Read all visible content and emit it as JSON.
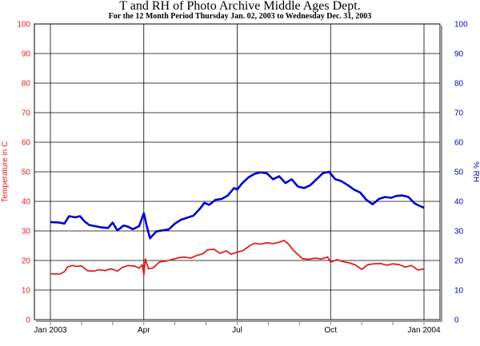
{
  "chart_data": {
    "type": "line",
    "title": "T and RH of Photo Archive Middle Ages Dept.",
    "subtitle": "For the 12 Month Period Thursday Jan. 02, 2003 to Wednesday Dec. 31, 2003",
    "ylabel_left": "Temperature in C",
    "ylabel_right": "% RH",
    "ylim_left": [
      0,
      100
    ],
    "ylim_right": [
      0,
      100
    ],
    "yticks": [
      0,
      10,
      20,
      30,
      40,
      50,
      60,
      70,
      80,
      90,
      100
    ],
    "x_ticks": [
      {
        "label": "Jan 2003",
        "month": 0
      },
      {
        "label": "Apr",
        "month": 3
      },
      {
        "label": "Jul",
        "month": 6
      },
      {
        "label": "Oct",
        "month": 9
      },
      {
        "label": "Jan 2004",
        "month": 12
      }
    ],
    "grid": true,
    "colors": {
      "temperature": "#e02020",
      "rh": "#0000cc"
    },
    "series": [
      {
        "axis": "left",
        "color": "#e02020",
        "x": [
          0,
          0.3,
          0.45,
          0.55,
          0.7,
          0.85,
          1.0,
          1.2,
          1.4,
          1.55,
          1.75,
          1.95,
          2.15,
          2.3,
          2.5,
          2.7,
          2.85,
          2.95,
          3.0,
          3.05,
          3.15,
          3.3,
          3.5,
          3.7,
          3.9,
          4.1,
          4.3,
          4.5,
          4.7,
          4.9,
          5.05,
          5.25,
          5.45,
          5.65,
          5.8,
          6.0,
          6.2,
          6.4,
          6.55,
          6.75,
          6.95,
          7.15,
          7.35,
          7.5,
          7.65,
          7.8,
          7.95,
          8.1,
          8.3,
          8.5,
          8.7,
          8.9,
          9.0,
          9.2,
          9.4,
          9.6,
          9.8,
          10.0,
          10.2,
          10.4,
          10.6,
          10.8,
          11.0,
          11.2,
          11.4,
          11.6,
          11.8,
          12.0
        ],
        "values": [
          15.5,
          15.4,
          16.2,
          17.8,
          18.3,
          18.0,
          18.2,
          16.5,
          16.4,
          16.9,
          16.6,
          17.2,
          16.4,
          17.6,
          18.3,
          18.1,
          17.4,
          18.6,
          15.2,
          20.5,
          17.2,
          17.5,
          19.5,
          19.8,
          20.3,
          20.9,
          21.2,
          20.8,
          21.7,
          22.3,
          23.6,
          23.8,
          22.4,
          23.3,
          22.1,
          22.8,
          23.4,
          25.0,
          25.8,
          25.5,
          26.0,
          25.7,
          26.2,
          26.8,
          25.5,
          23.5,
          22.0,
          20.6,
          20.4,
          20.8,
          20.5,
          21.2,
          19.4,
          20.3,
          19.6,
          19.2,
          18.5,
          17.0,
          18.6,
          18.9,
          19.0,
          18.4,
          18.9,
          18.6,
          17.8,
          18.3,
          16.8,
          17.1
        ]
      },
      {
        "axis": "right",
        "color": "#0000cc",
        "x": [
          0,
          0.3,
          0.45,
          0.6,
          0.8,
          0.95,
          1.1,
          1.25,
          1.45,
          1.65,
          1.85,
          2.0,
          2.15,
          2.35,
          2.5,
          2.65,
          2.85,
          3.0,
          3.1,
          3.2,
          3.4,
          3.6,
          3.8,
          4.0,
          4.2,
          4.4,
          4.6,
          4.8,
          4.95,
          5.1,
          5.3,
          5.5,
          5.7,
          5.9,
          6.0,
          6.15,
          6.35,
          6.55,
          6.75,
          6.95,
          7.15,
          7.35,
          7.55,
          7.75,
          7.95,
          8.15,
          8.35,
          8.55,
          8.75,
          8.95,
          9.15,
          9.35,
          9.55,
          9.75,
          9.95,
          10.15,
          10.35,
          10.55,
          10.75,
          10.95,
          11.1,
          11.3,
          11.5,
          11.7,
          11.85,
          12.0
        ],
        "values": [
          33,
          32.8,
          32.5,
          35.0,
          34.6,
          35.0,
          33.2,
          32.0,
          31.6,
          31.2,
          31.0,
          32.8,
          30.2,
          31.8,
          31.4,
          30.6,
          31.6,
          36.0,
          31.5,
          27.5,
          29.8,
          30.2,
          30.5,
          32.5,
          33.8,
          34.5,
          35.2,
          37.5,
          39.5,
          38.8,
          40.5,
          40.8,
          42.0,
          44.5,
          44.0,
          46.0,
          48.0,
          49.3,
          49.8,
          49.5,
          47.5,
          48.5,
          46.2,
          47.5,
          45.0,
          44.5,
          45.5,
          47.5,
          49.5,
          50.0,
          47.5,
          46.8,
          45.5,
          44.0,
          43.0,
          40.5,
          39.0,
          40.8,
          41.5,
          41.2,
          41.8,
          42.0,
          41.5,
          39.3,
          38.5,
          37.8
        ]
      }
    ]
  }
}
